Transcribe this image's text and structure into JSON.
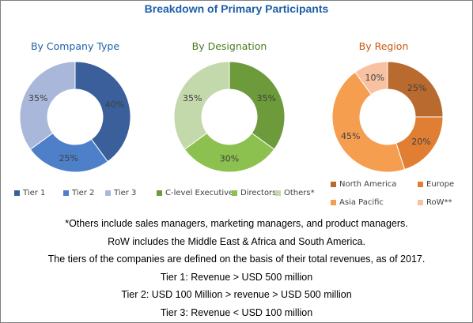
{
  "title": "Breakdown of Primary Participants",
  "chart_data": [
    {
      "type": "pie",
      "title": "By Company Type",
      "title_color": "#1f5fa8",
      "categories": [
        "Tier 1",
        "Tier 2",
        "Tier 3"
      ],
      "values": [
        40,
        25,
        35
      ],
      "labels": [
        "40%",
        "25%",
        "35%"
      ],
      "colors": [
        "#3a5f9a",
        "#4e7fc9",
        "#a9b8da"
      ]
    },
    {
      "type": "pie",
      "title": "By Designation",
      "title_color": "#4a7a1d",
      "categories": [
        "C-level Executives",
        "Directors",
        "Others*"
      ],
      "values": [
        35,
        30,
        35
      ],
      "labels": [
        "35%",
        "30%",
        "35%"
      ],
      "colors": [
        "#6d9a3a",
        "#8cc04f",
        "#c4d9ab"
      ]
    },
    {
      "type": "pie",
      "title": "By Region",
      "title_color": "#c55a11",
      "categories": [
        "North America",
        "Europe",
        "Asia Pacific",
        "RoW**"
      ],
      "values": [
        25,
        20,
        45,
        10
      ],
      "labels": [
        "25%",
        "20%",
        "45%",
        "10%"
      ],
      "colors": [
        "#b86a2f",
        "#e07f33",
        "#f59e4f",
        "#f8c2a2"
      ]
    }
  ],
  "footnotes": [
    "*Others include sales managers, marketing managers, and product managers.",
    "RoW includes the Middle East & Africa and South America.",
    "The tiers of the companies are defined on the basis of their total revenues, as of 2017.",
    "Tier 1: Revenue > USD 500 million",
    "Tier 2: USD 100 Million > revenue > USD 500 million",
    "Tier 3: Revenue < USD 100 million"
  ]
}
